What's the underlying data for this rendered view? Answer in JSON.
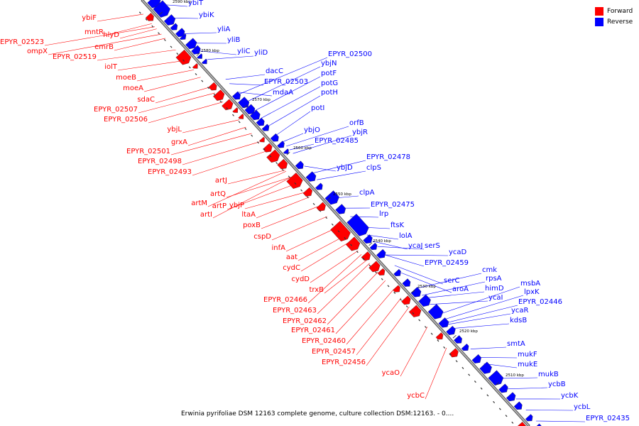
{
  "caption": "Erwinia pyrifoliae DSM 12163 complete genome, culture collection DSM:12163. - 0....",
  "legend": [
    {
      "label": "Forward",
      "color": "#ff0000"
    },
    {
      "label": "Reverse",
      "color": "#0000ff"
    }
  ],
  "colors": {
    "forward": "#ff0000",
    "reverse": "#0000ff",
    "backbone": "#808080"
  },
  "ticks": [
    "2590 kbp",
    "2580 kbp",
    "2570 kbp",
    "2560 kbp",
    "2550 kbp",
    "2540 kbp",
    "2530 kbp",
    "2520 kbp",
    "2510 kbp"
  ],
  "reverse_genes": [
    "ybiT",
    "ybiK",
    "yliA",
    "yliB",
    "yliC",
    "yliD",
    "EPYR_02500",
    "ybjN",
    "potF",
    "potG",
    "potH",
    "dacC",
    "EPYR_02503",
    "mdaA",
    "potI",
    "orfB",
    "ybjR",
    "ybjO",
    "EPYR_02485",
    "EPYR_02478",
    "ybjD",
    "clpS",
    "clpA",
    "EPYR_02475",
    "lrp",
    "ftsK",
    "lolA",
    "ycaJ",
    "serS",
    "ycaD",
    "EPYR_02459",
    "cmk",
    "rpsA",
    "serC",
    "aroA",
    "himD",
    "msbA",
    "lpxK",
    "ycaI",
    "EPYR_02446",
    "ycaR",
    "kdsB",
    "smtA",
    "mukF",
    "mukE",
    "mukB",
    "ycbB",
    "ycbK",
    "ycbL",
    "EPYR_02435"
  ],
  "forward_genes": [
    "ybiF",
    "mntR",
    "hlyD",
    "EPYR_02523",
    "ompX",
    "emrB",
    "EPYR_02519",
    "iolT",
    "moeB",
    "moeA",
    "sdaC",
    "EPYR_02507",
    "EPYR_02506",
    "ybjL",
    "grxA",
    "EPYR_02501",
    "EPYR_02498",
    "EPYR_02493",
    "artJ",
    "artQ",
    "artM",
    "artP",
    "ybjP",
    "artI",
    "ltaA",
    "poxB",
    "cspD",
    "infA",
    "aat",
    "cydC",
    "cydD",
    "trxB",
    "EPYR_02466",
    "EPYR_02463",
    "EPYR_02462",
    "EPYR_02461",
    "EPYR_02460",
    "EPYR_02457",
    "EPYR_02456",
    "ycaO",
    "ycbC"
  ]
}
